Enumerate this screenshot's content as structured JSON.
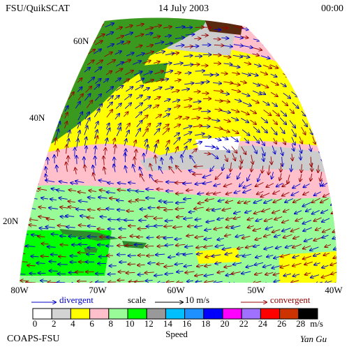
{
  "header": {
    "title": "FSU/QuikSCAT",
    "date": "14 July 2003",
    "time": "00:00"
  },
  "map": {
    "lat_labels": [
      "60N",
      "40N",
      "20N"
    ],
    "lon_labels": [
      "80W",
      "70W",
      "60W",
      "50W",
      "40W"
    ]
  },
  "legend": {
    "divergent": "divergent",
    "scale": "scale",
    "scale_value": "10 m/s",
    "convergent": "convergent"
  },
  "colorbar": {
    "ticks": [
      0,
      2,
      4,
      6,
      8,
      10,
      12,
      14,
      16,
      18,
      20,
      22,
      24,
      26,
      28
    ],
    "colors": [
      "#ffffff",
      "#d3d3d3",
      "#ffff00",
      "#ffc0cb",
      "#98fb98",
      "#00ff00",
      "#999999",
      "#00bfff",
      "#1e90ff",
      "#0000ff",
      "#ff00ff",
      "#a070ff",
      "#ff0000",
      "#cc3300",
      "#000000"
    ],
    "unit": "m/s",
    "title": "Speed"
  },
  "footer": {
    "credit": "COAPS-FSU",
    "author": "Yan Gu"
  }
}
